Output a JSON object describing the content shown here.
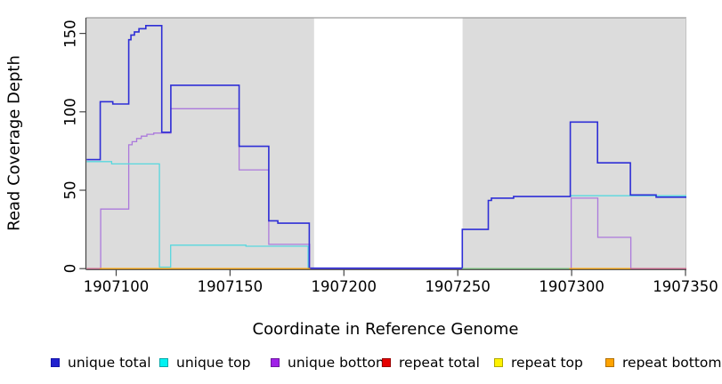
{
  "chart_data": {
    "type": "line",
    "title": "",
    "xlabel": "Coordinate in Reference Genome",
    "ylabel": "Read Coverage Depth",
    "xlim": [
      1907086.7,
      1907350.4
    ],
    "ylim": [
      -0.6,
      160
    ],
    "x_ticks": [
      1907100,
      1907150,
      1907200,
      1907250,
      1907300,
      1907350
    ],
    "y_ticks": [
      0,
      50,
      100,
      150
    ],
    "grid": false,
    "legend_position": "bottom",
    "panel_bg": "#dcdcdc",
    "box_top_color": "#9a9a9a",
    "box_right_color": "#c2c2c2",
    "axis_color": "#454545",
    "shaded_regions": [
      [
        1907086.7,
        1907186.9
      ],
      [
        1907252.1,
        1907350.4
      ]
    ],
    "uncovered_gap": [
      1907187,
      1907252
    ],
    "series": [
      {
        "name": "unique bottom",
        "color": "#ab79dc",
        "width": 1.3,
        "x_end": 1907350.4,
        "points": [
          [
            1907092.8,
            0
          ],
          [
            1907093.2,
            38
          ],
          [
            1907105.5,
            79
          ],
          [
            1907107,
            81
          ],
          [
            1907109,
            83
          ],
          [
            1907111,
            84.5
          ],
          [
            1907113.5,
            85.7
          ],
          [
            1907116.5,
            86.5
          ],
          [
            1907124,
            102
          ],
          [
            1907154,
            63
          ],
          [
            1907167,
            15.5
          ],
          [
            1907185,
            -0.4
          ],
          [
            1907299.8,
            45
          ],
          [
            1907311.5,
            20
          ],
          [
            1907326,
            -0.4
          ]
        ]
      },
      {
        "name": "unique top",
        "color": "#58d7de",
        "width": 1.3,
        "x_end": 1907185,
        "points": [
          [
            1907087,
            68.3
          ],
          [
            1907098,
            66.8
          ],
          [
            1907119,
            1
          ],
          [
            1907123.9,
            15
          ],
          [
            1907157,
            14.3
          ],
          [
            1907184.3,
            0
          ]
        ]
      },
      {
        "name": "unique top right",
        "color": "#58d7de",
        "width": 1.3,
        "x_end": 1907350.4,
        "points": [
          [
            1907299.4,
            46.5
          ]
        ]
      },
      {
        "name": "unique total",
        "color": "#2e2ed6",
        "width": 1.6,
        "x_end": 1907350.4,
        "points": [
          [
            1907087,
            69.5
          ],
          [
            1907093,
            106.5
          ],
          [
            1907098.5,
            105
          ],
          [
            1907105.5,
            146
          ],
          [
            1907106.5,
            149
          ],
          [
            1907108,
            151
          ],
          [
            1907110,
            153
          ],
          [
            1907113,
            155
          ],
          [
            1907120,
            87
          ],
          [
            1907124,
            117
          ],
          [
            1907154,
            78
          ],
          [
            1907167,
            30.5
          ],
          [
            1907171,
            29
          ],
          [
            1907184.8,
            0.3
          ],
          [
            1907252,
            25
          ],
          [
            1907263.4,
            43.5
          ],
          [
            1907264.8,
            45
          ],
          [
            1907274.5,
            46
          ],
          [
            1907299.4,
            93.5
          ],
          [
            1907311.4,
            67.5
          ],
          [
            1907325.8,
            47
          ],
          [
            1907337.1,
            45.6
          ]
        ]
      }
    ],
    "baseline_segments": [
      {
        "name": "baseline pink left",
        "color": "#d4688c",
        "from": 1907087,
        "to": 1907093.5,
        "value": 0
      },
      {
        "name": "baseline orange left",
        "color": "#ffa500",
        "from": 1907092.8,
        "to": 1907185.2,
        "value": 0
      },
      {
        "name": "baseline green",
        "color": "#7cc97c",
        "from": 1907252,
        "to": 1907299.2,
        "value": 0
      },
      {
        "name": "baseline orange right",
        "color": "#ffa500",
        "from": 1907299,
        "to": 1907326.2,
        "value": 0
      },
      {
        "name": "baseline pink right",
        "color": "#d4688c",
        "from": 1907325.8,
        "to": 1907350.4,
        "value": 0
      }
    ],
    "legend": [
      {
        "label": "unique total",
        "fill": "#2121ce",
        "border": "#1414a8"
      },
      {
        "label": "unique top",
        "fill": "#00f2f2",
        "border": "#00a8a8"
      },
      {
        "label": "unique bottom",
        "fill": "#a021e8",
        "border": "#6e17a0"
      },
      {
        "label": "repeat total",
        "fill": "#e60000",
        "border": "#990000"
      },
      {
        "label": "repeat top",
        "fill": "#fff200",
        "border": "#b0a800"
      },
      {
        "label": "repeat bottom",
        "fill": "#ffa300",
        "border": "#b07000"
      }
    ]
  }
}
